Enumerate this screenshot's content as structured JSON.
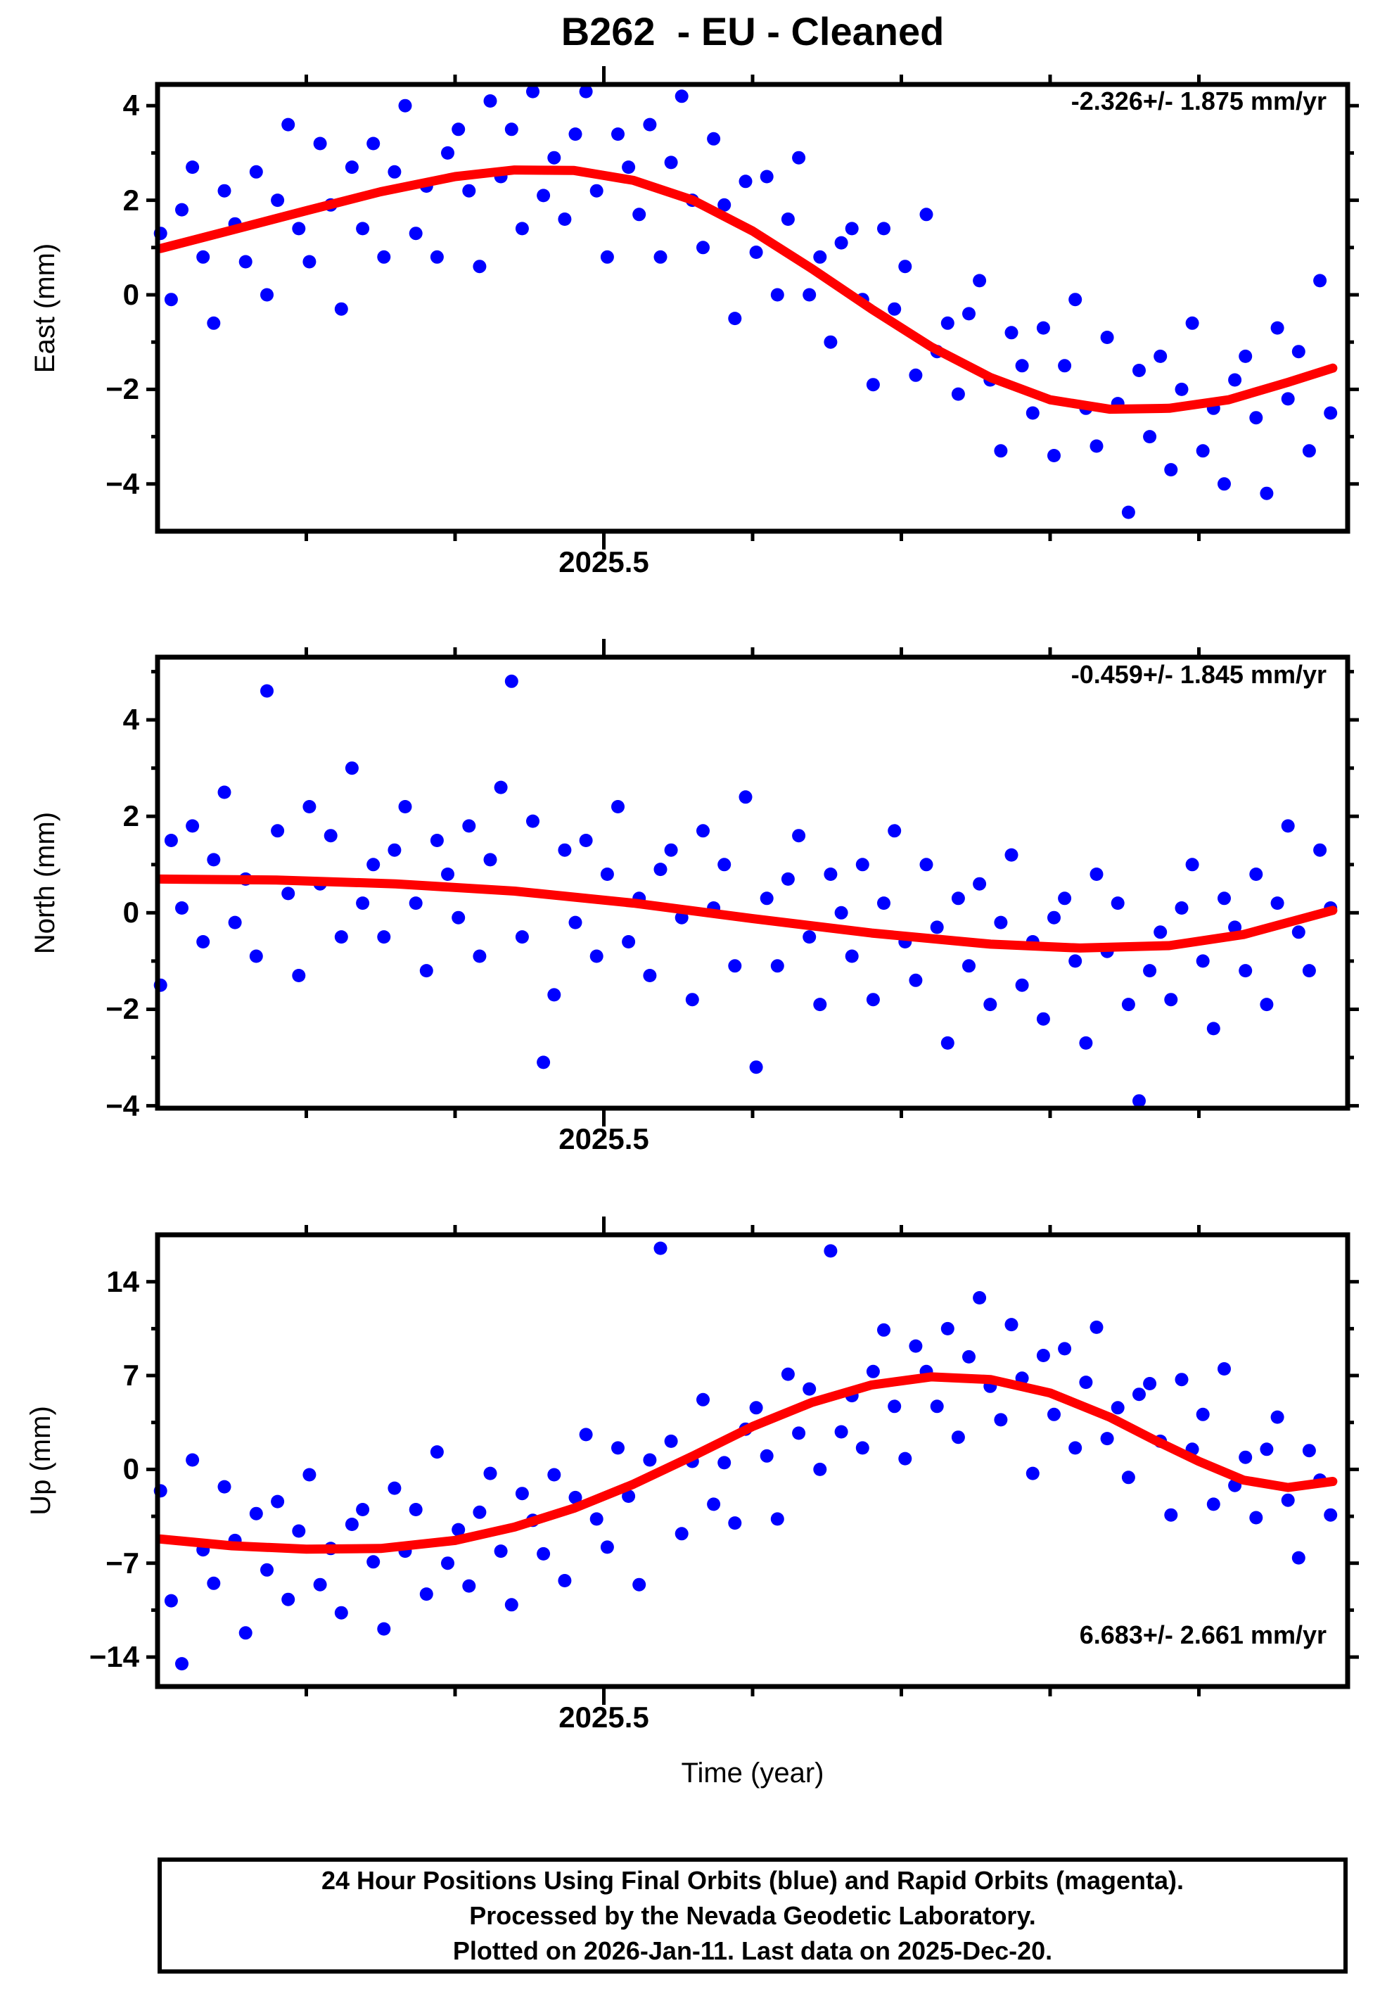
{
  "title": "B262  - EU - Cleaned",
  "xlabel": "Time (year)",
  "footer": {
    "line1": "24 Hour Positions Using Final Orbits (blue) and Rapid Orbits (magenta).",
    "line2": "Processed by the Nevada Geodetic Laboratory.",
    "line3": "Plotted on 2026-Jan-11. Last data on 2025-Dec-20."
  },
  "colors": {
    "points": "#0000ff",
    "trend": "#ff0000",
    "axis": "#000000",
    "background": "#ffffff"
  },
  "chart_data": [
    {
      "type": "scatter",
      "name": "East",
      "y_title": "East (mm)",
      "trend_label": "-2.326+/- 1.875 mm/yr",
      "xlim": [
        2025.2,
        2026.0
      ],
      "ylim": [
        -5.0,
        4.45
      ],
      "yticks": [
        4,
        2,
        0,
        -2,
        -4
      ],
      "ytick_labels": [
        "4",
        "2",
        "0",
        "−2",
        "−4"
      ],
      "yticks_minor": [
        3,
        1,
        -1,
        -3
      ],
      "xtick_major": 2025.5,
      "xtick_label": "2025.5",
      "xticks_minor": [
        2025.3,
        2025.4,
        2025.6,
        2025.7,
        2025.8,
        2025.9
      ],
      "scatter": {
        "t_start": 2025.202,
        "t_step": 0.00715,
        "y": [
          1.3,
          -0.1,
          1.8,
          2.7,
          0.8,
          -0.6,
          2.2,
          1.5,
          0.7,
          2.6,
          0.0,
          2.0,
          3.6,
          1.4,
          0.7,
          3.2,
          1.9,
          -0.3,
          2.7,
          1.4,
          3.2,
          0.8,
          2.6,
          4.0,
          1.3,
          2.3,
          0.8,
          3.0,
          3.5,
          2.2,
          0.6,
          4.1,
          2.5,
          3.5,
          1.4,
          4.3,
          2.1,
          2.9,
          1.6,
          3.4,
          4.3,
          2.2,
          0.8,
          3.4,
          2.7,
          1.7,
          3.6,
          0.8,
          2.8,
          4.2,
          2.0,
          1.0,
          3.3,
          1.9,
          -0.5,
          2.4,
          0.9,
          2.5,
          0.0,
          1.6,
          2.9,
          0.0,
          0.8,
          -1.0,
          1.1,
          1.4,
          -0.1,
          -1.9,
          1.4,
          -0.3,
          0.6,
          -1.7,
          1.7,
          -1.2,
          -0.6,
          -2.1,
          -0.4,
          0.3,
          -1.8,
          -3.3,
          -0.8,
          -1.5,
          -2.5,
          -0.7,
          -3.4,
          -1.5,
          -0.1,
          -2.4,
          -3.2,
          -0.9,
          -2.3,
          -4.6,
          -1.6,
          -3.0,
          -1.3,
          -3.7,
          -2.0,
          -0.6,
          -3.3,
          -2.4,
          -4.0,
          -1.8,
          -1.3,
          -2.6,
          -4.2,
          -0.7,
          -2.2,
          -1.2,
          -3.3,
          0.3,
          -2.5
        ]
      },
      "trend_line": [
        [
          2025.202,
          0.98
        ],
        [
          2025.25,
          1.37
        ],
        [
          2025.3,
          1.78
        ],
        [
          2025.35,
          2.18
        ],
        [
          2025.4,
          2.5
        ],
        [
          2025.44,
          2.64
        ],
        [
          2025.48,
          2.63
        ],
        [
          2025.52,
          2.42
        ],
        [
          2025.56,
          2.0
        ],
        [
          2025.6,
          1.35
        ],
        [
          2025.64,
          0.55
        ],
        [
          2025.68,
          -0.3
        ],
        [
          2025.72,
          -1.1
        ],
        [
          2025.76,
          -1.75
        ],
        [
          2025.8,
          -2.22
        ],
        [
          2025.84,
          -2.42
        ],
        [
          2025.88,
          -2.4
        ],
        [
          2025.92,
          -2.22
        ],
        [
          2025.96,
          -1.85
        ],
        [
          2025.99,
          -1.55
        ]
      ]
    },
    {
      "type": "scatter",
      "name": "North",
      "y_title": "North (mm)",
      "trend_label": "-0.459+/- 1.845 mm/yr",
      "xlim": [
        2025.2,
        2026.0
      ],
      "ylim": [
        -4.05,
        5.3
      ],
      "yticks": [
        4,
        2,
        0,
        -2,
        -4
      ],
      "ytick_labels": [
        "4",
        "2",
        "0",
        "−2",
        "−4"
      ],
      "yticks_minor": [
        5,
        3,
        1,
        -1,
        -3
      ],
      "xtick_major": 2025.5,
      "xtick_label": "2025.5",
      "xticks_minor": [
        2025.3,
        2025.4,
        2025.6,
        2025.7,
        2025.8,
        2025.9
      ],
      "scatter": {
        "t_start": 2025.202,
        "t_step": 0.00715,
        "y": [
          -1.5,
          1.5,
          0.1,
          1.8,
          -0.6,
          1.1,
          2.5,
          -0.2,
          0.7,
          -0.9,
          4.6,
          1.7,
          0.4,
          -1.3,
          2.2,
          0.6,
          1.6,
          -0.5,
          3.0,
          0.2,
          1.0,
          -0.5,
          1.3,
          2.2,
          0.2,
          -1.2,
          1.5,
          0.8,
          -0.1,
          1.8,
          -0.9,
          1.1,
          2.6,
          4.8,
          -0.5,
          1.9,
          -3.1,
          -1.7,
          1.3,
          -0.2,
          1.5,
          -0.9,
          0.8,
          2.2,
          -0.6,
          0.3,
          -1.3,
          0.9,
          1.3,
          -0.1,
          -1.8,
          1.7,
          0.1,
          1.0,
          -1.1,
          2.4,
          -3.2,
          0.3,
          -1.1,
          0.7,
          1.6,
          -0.5,
          -1.9,
          0.8,
          0.0,
          -0.9,
          1.0,
          -1.8,
          0.2,
          1.7,
          -0.6,
          -1.4,
          1.0,
          -0.3,
          -2.7,
          0.3,
          -1.1,
          0.6,
          -1.9,
          -0.2,
          1.2,
          -1.5,
          -0.6,
          -2.2,
          -0.1,
          0.3,
          -1.0,
          -2.7,
          0.8,
          -0.8,
          0.2,
          -1.9,
          -3.9,
          -1.2,
          -0.4,
          -1.8,
          0.1,
          1.0,
          -1.0,
          -2.4,
          0.3,
          -0.3,
          -1.2,
          0.8,
          -1.9,
          0.2,
          1.8,
          -0.4,
          -1.2,
          1.3,
          0.1
        ]
      },
      "trend_line": [
        [
          2025.202,
          0.7
        ],
        [
          2025.28,
          0.68
        ],
        [
          2025.36,
          0.6
        ],
        [
          2025.44,
          0.45
        ],
        [
          2025.52,
          0.2
        ],
        [
          2025.6,
          -0.12
        ],
        [
          2025.68,
          -0.42
        ],
        [
          2025.76,
          -0.65
        ],
        [
          2025.82,
          -0.73
        ],
        [
          2025.88,
          -0.68
        ],
        [
          2025.93,
          -0.45
        ],
        [
          2025.99,
          0.05
        ]
      ]
    },
    {
      "type": "scatter",
      "name": "Up",
      "y_title": "Up (mm)",
      "trend_label": "6.683+/- 2.661 mm/yr",
      "xlim": [
        2025.2,
        2026.0
      ],
      "ylim": [
        -16.2,
        17.5
      ],
      "yticks": [
        14,
        7,
        0,
        -7,
        -14
      ],
      "ytick_labels": [
        "14",
        "7",
        "0",
        "−7",
        "−14"
      ],
      "yticks_minor": [
        10.5,
        3.5,
        -3.5,
        -10.5
      ],
      "xtick_major": 2025.5,
      "xtick_label": "2025.5",
      "xticks_minor": [
        2025.3,
        2025.4,
        2025.6,
        2025.7,
        2025.8,
        2025.9
      ],
      "scatter": {
        "t_start": 2025.202,
        "t_step": 0.00715,
        "y": [
          -1.6,
          -9.8,
          -14.5,
          0.7,
          -6.0,
          -8.5,
          -1.3,
          -5.3,
          -12.2,
          -3.3,
          -7.5,
          -2.4,
          -9.7,
          -4.6,
          -0.4,
          -8.6,
          -5.9,
          -10.7,
          -4.1,
          -3.0,
          -6.9,
          -11.9,
          -1.4,
          -6.1,
          -3.0,
          -9.3,
          1.3,
          -7.0,
          -4.5,
          -8.7,
          -3.2,
          -0.3,
          -6.1,
          -10.1,
          -1.8,
          -3.8,
          -6.3,
          -0.4,
          -8.3,
          -2.1,
          2.6,
          -3.7,
          -5.8,
          1.6,
          -2.0,
          -8.6,
          0.7,
          16.5,
          2.1,
          -4.8,
          0.6,
          5.2,
          -2.6,
          0.5,
          -4.0,
          3.0,
          4.6,
          1.0,
          -3.7,
          7.1,
          2.7,
          6.0,
          0.0,
          16.3,
          2.8,
          5.5,
          1.6,
          7.3,
          10.4,
          4.7,
          0.8,
          9.2,
          7.3,
          4.7,
          10.5,
          2.4,
          8.4,
          12.8,
          6.2,
          3.7,
          10.8,
          6.8,
          -0.3,
          8.5,
          4.1,
          9.0,
          1.6,
          6.5,
          10.6,
          2.3,
          4.6,
          -0.6,
          5.6,
          6.4,
          2.1,
          -3.4,
          6.7,
          1.5,
          4.1,
          -2.6,
          7.5,
          -1.2,
          0.9,
          -3.6,
          1.5,
          3.9,
          -2.3,
          -6.6,
          1.4,
          -0.8,
          -3.4
        ]
      },
      "trend_line": [
        [
          2025.202,
          -5.2
        ],
        [
          2025.25,
          -5.7
        ],
        [
          2025.3,
          -5.95
        ],
        [
          2025.35,
          -5.9
        ],
        [
          2025.4,
          -5.3
        ],
        [
          2025.44,
          -4.3
        ],
        [
          2025.48,
          -2.9
        ],
        [
          2025.52,
          -1.1
        ],
        [
          2025.56,
          1.0
        ],
        [
          2025.6,
          3.2
        ],
        [
          2025.64,
          5.0
        ],
        [
          2025.68,
          6.3
        ],
        [
          2025.72,
          6.9
        ],
        [
          2025.76,
          6.7
        ],
        [
          2025.8,
          5.7
        ],
        [
          2025.84,
          3.9
        ],
        [
          2025.87,
          2.2
        ],
        [
          2025.9,
          0.6
        ],
        [
          2025.93,
          -0.8
        ],
        [
          2025.96,
          -1.35
        ],
        [
          2025.99,
          -0.9
        ]
      ]
    }
  ]
}
